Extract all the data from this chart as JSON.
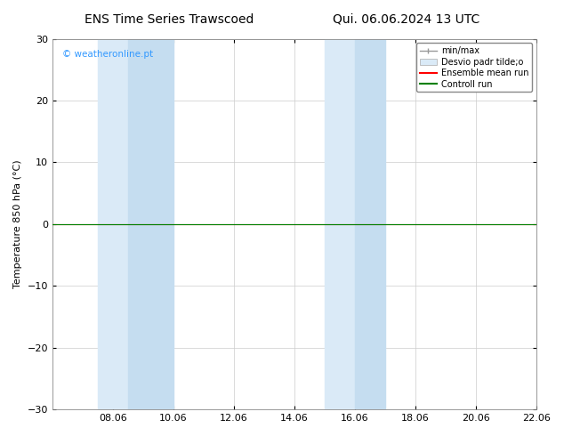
{
  "title_left": "ENS Time Series Trawscoed",
  "title_right": "Qui. 06.06.2024 13 UTC",
  "ylabel": "Temperature 850 hPa (°C)",
  "watermark": "© weatheronline.pt",
  "watermark_color": "#3399ff",
  "ylim": [
    -30,
    30
  ],
  "yticks": [
    -30,
    -20,
    -10,
    0,
    10,
    20,
    30
  ],
  "xtick_labels": [
    "08.06",
    "10.06",
    "12.06",
    "14.06",
    "16.06",
    "18.06",
    "20.06",
    "22.06"
  ],
  "xtick_positions": [
    2,
    4,
    6,
    8,
    10,
    12,
    14,
    16
  ],
  "x_min": 0,
  "x_max": 16,
  "shaded_regions": [
    [
      1.5,
      2.5
    ],
    [
      2.5,
      4.0
    ],
    [
      9.0,
      10.0
    ],
    [
      10.0,
      11.0
    ]
  ],
  "flat_line_color_green": "#008000",
  "flat_line_color_red": "#ff0000",
  "background_color": "#ffffff",
  "plot_bg_color": "#ffffff",
  "legend_entries": [
    "min/max",
    "Desvio padr tilde;o",
    "Ensemble mean run",
    "Controll run"
  ],
  "shade_color": "#daeaf7",
  "shade_color2": "#c5ddf0",
  "grid_color": "#cccccc",
  "title_fontsize": 10,
  "axis_label_fontsize": 8,
  "tick_fontsize": 8
}
